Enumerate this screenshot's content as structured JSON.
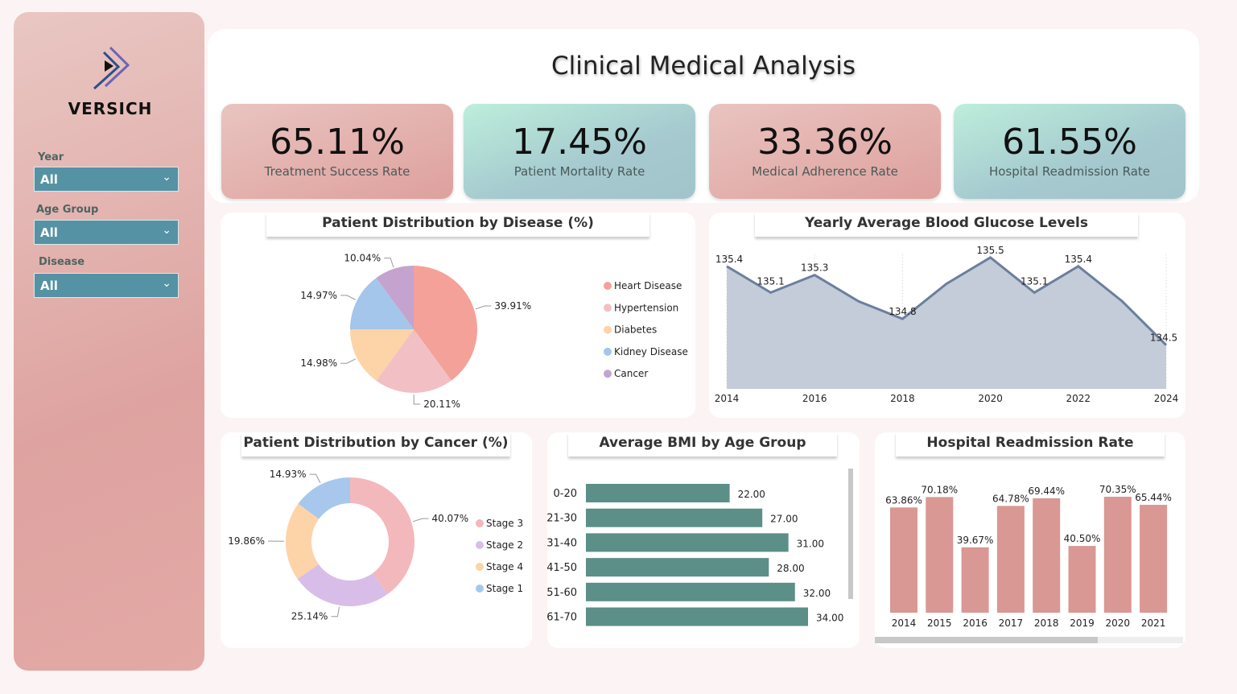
{
  "sidebar": {
    "brand": "VERSICH",
    "filters": [
      {
        "label": "Year",
        "value": "All"
      },
      {
        "label": "Age Group",
        "value": "All"
      },
      {
        "label": "Disease",
        "value": "All"
      }
    ]
  },
  "header": {
    "title": "Clinical Medical Analysis"
  },
  "kpis": [
    {
      "value": "65.11%",
      "label": "Treatment Success Rate"
    },
    {
      "value": "17.45%",
      "label": "Patient Mortality Rate"
    },
    {
      "value": "33.36%",
      "label": "Medical Adherence Rate"
    },
    {
      "value": "61.55%",
      "label": "Hospital Readmission Rate"
    }
  ],
  "chart_data": [
    {
      "type": "pie",
      "title": "Patient Distribution by Disease (%)",
      "legend": "right",
      "categories": [
        "Heart Disease",
        "Hypertension",
        "Diabetes",
        "Kidney Disease",
        "Cancer"
      ],
      "values": [
        39.91,
        20.11,
        14.98,
        14.97,
        10.04
      ],
      "labels": [
        "39.91%",
        "20.11%",
        "14.98%",
        "14.97%",
        "10.04%"
      ],
      "colors": [
        "#f4a19a",
        "#f2c0c4",
        "#fdd3a8",
        "#a3c6ea",
        "#c5a3cf"
      ]
    },
    {
      "type": "area",
      "title": "Yearly Average Blood Glucose Levels",
      "x": [
        2014,
        2015,
        2016,
        2017,
        2018,
        2019,
        2020,
        2021,
        2022,
        2023,
        2024
      ],
      "values": [
        135.4,
        135.1,
        135.3,
        135.0,
        134.8,
        135.2,
        135.5,
        135.1,
        135.4,
        135.0,
        134.5
      ],
      "point_labels": [
        "135.4",
        "135.1",
        "135.3",
        "",
        "134.8",
        "",
        "135.5",
        "135.1",
        "135.4",
        "",
        "134.5"
      ],
      "xticks": [
        "2014",
        "2016",
        "2018",
        "2020",
        "2022",
        "2024"
      ],
      "ylim": [
        134.0,
        135.6
      ],
      "color": "#6b7f9c",
      "fill": "#c4ccd9",
      "grid": "vertical dotted"
    },
    {
      "type": "pie",
      "donut": true,
      "title": "Patient Distribution by Cancer (%)",
      "legend": "right",
      "categories": [
        "Stage 3",
        "Stage 2",
        "Stage 4",
        "Stage 1"
      ],
      "values": [
        40.07,
        25.14,
        19.86,
        14.93
      ],
      "labels": [
        "40.07%",
        "25.14%",
        "19.86%",
        "14.93%"
      ],
      "colors": [
        "#f2b8bb",
        "#d9bde9",
        "#fdd3a8",
        "#a7c8ec"
      ]
    },
    {
      "type": "bar",
      "orientation": "horizontal",
      "title": "Average BMI by Age Group",
      "categories": [
        "0-20",
        "21-30",
        "31-40",
        "41-50",
        "51-60",
        "61-70"
      ],
      "values": [
        22,
        27,
        31,
        28,
        32,
        34
      ],
      "labels": [
        "22.00",
        "27.00",
        "31.00",
        "28.00",
        "32.00",
        "34.00"
      ],
      "xlim": [
        0,
        34
      ],
      "color": "#5b8f87"
    },
    {
      "type": "bar",
      "title": "Hospital Readmission Rate",
      "categories": [
        "2014",
        "2015",
        "2016",
        "2017",
        "2018",
        "2019",
        "2020",
        "2021"
      ],
      "values": [
        63.86,
        70.18,
        39.67,
        64.78,
        69.44,
        40.5,
        70.35,
        65.44
      ],
      "labels": [
        "63.86%",
        "70.18%",
        "39.67%",
        "64.78%",
        "69.44%",
        "40.50%",
        "70.35%",
        "65.44%"
      ],
      "ylim": [
        0,
        70.35
      ],
      "color": "#d99893"
    }
  ]
}
